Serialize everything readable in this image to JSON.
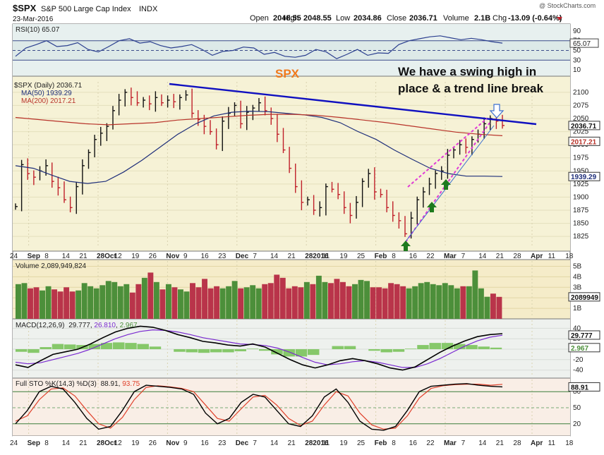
{
  "header": {
    "symbol": "$SPX",
    "name": "S&P 500 Large Cap Index",
    "exchange": "INDX",
    "date": "23-Mar-2016",
    "watermark": "@ StockCharts.com",
    "open_label": "Open",
    "open": "2048.55",
    "high_label": "High",
    "high": "2048.55",
    "low_label": "Low",
    "low": "2034.86",
    "close_label": "Close",
    "close": "2036.71",
    "volume_label": "Volume",
    "volume": "2.1B",
    "chg_label": "Chg",
    "chg": "-13.09 (-0.64%)"
  },
  "annotations": {
    "spx": "SPX",
    "comment_line1": "We have a swing high in",
    "comment_line2": "place & a trend line break"
  },
  "panels": {
    "rsi": {
      "label": "RSI(10) 65.07",
      "value": "65.07",
      "ticks": [
        "90",
        "70",
        "50",
        "30",
        "10"
      ]
    },
    "price": {
      "label": "$SPX (Daily) 2036.71",
      "ma50_label": "MA(50) 1939.29",
      "ma200_label": "MA(200) 2017.21",
      "close_tag": "2036.71",
      "ma200_tag": "2017.21",
      "ma50_tag": "1939.29",
      "ticks": [
        "2100",
        "2075",
        "2050",
        "2025",
        "2000",
        "1975",
        "1950",
        "1925",
        "1900",
        "1875",
        "1850",
        "1825"
      ]
    },
    "volume": {
      "label": "Volume 2,089,949,824",
      "tag": "2089949",
      "ticks": [
        "5B",
        "4B",
        "3B",
        "2B",
        "1B"
      ]
    },
    "macd": {
      "label_prefix": "MACD(12,26,9)",
      "v1": "29.777",
      "v2": "26.810",
      "v3": "2.967",
      "tag1": "29.777",
      "tag2": "2.967",
      "ticks": [
        "40",
        "20",
        "0",
        "-20",
        "-40"
      ]
    },
    "sto": {
      "label_prefix": "Full STO %K(14,3) %D(3)",
      "k": "88.91",
      "d": "93.75",
      "tag": "88.91",
      "ticks": [
        "80",
        "50",
        "20"
      ]
    }
  },
  "x_axis": {
    "labels": [
      "24",
      "Sep",
      "8",
      "14",
      "21",
      "28Oct",
      "12",
      "19",
      "26",
      "Nov",
      "9",
      "16",
      "23",
      "Dec",
      "7",
      "14",
      "21",
      "282016",
      "11",
      "19",
      "25",
      "Feb",
      "8",
      "16",
      "22",
      "Mar",
      "7",
      "14",
      "21",
      "28",
      "Apr",
      "11",
      "18"
    ],
    "bold": [
      false,
      true,
      false,
      false,
      false,
      true,
      false,
      false,
      false,
      true,
      false,
      false,
      false,
      true,
      false,
      false,
      false,
      true,
      false,
      false,
      false,
      true,
      false,
      false,
      false,
      true,
      false,
      false,
      false,
      false,
      true,
      false,
      false
    ]
  },
  "colors": {
    "rsi_line": "#2b3f8f",
    "ma50": "#1f2f7a",
    "ma200": "#b8332a",
    "trend_line": "#1010c0",
    "wedge": "#e03ad6",
    "spx_text": "#f07a1c",
    "arrow_green": "#1e7a1e",
    "vol_up": "#4c8f3a",
    "vol_down": "#b9344a",
    "macd_line": "#000000",
    "signal_line": "#7a2ad0",
    "hist": "#86c86a",
    "sto_k": "#000000",
    "sto_d": "#e0402a",
    "price_bg": "#f7f3d8"
  },
  "chart_data": [
    {
      "type": "line",
      "title": "RSI(10) 65.07",
      "ylim": [
        0,
        100
      ],
      "series": [
        {
          "name": "RSI(10)",
          "values": [
            38,
            55,
            62,
            70,
            58,
            60,
            66,
            52,
            47,
            58,
            70,
            74,
            65,
            68,
            60,
            55,
            58,
            62,
            52,
            40,
            48,
            50,
            57,
            55,
            42,
            46,
            38,
            36,
            40,
            52,
            47,
            33,
            42,
            52,
            40,
            45,
            44,
            62,
            70,
            74,
            78,
            80,
            76,
            72,
            75,
            72,
            68,
            65.07
          ]
        }
      ]
    },
    {
      "type": "line",
      "title": "$SPX (Daily) 2036.71",
      "ylim": [
        1805,
        2120
      ],
      "series": [
        {
          "name": "$SPX",
          "values": [
            1882,
            1962,
            1945,
            1938,
            1950,
            1960,
            1930,
            1918,
            1895,
            1880,
            1920,
            1960,
            1985,
            2010,
            2022,
            2035,
            2065,
            2085,
            2100,
            2090,
            2080,
            2085,
            2078,
            2090,
            2080,
            2085,
            2082,
            2090,
            2095,
            2060,
            2048,
            2035,
            2025,
            2000,
            2045,
            2060,
            2075,
            2040,
            2062,
            2070,
            2080,
            2065,
            2050,
            2020,
            1990,
            1955,
            1920,
            1890,
            1895,
            1875,
            1880,
            1920,
            1915,
            1905,
            1880,
            1865,
            1890,
            1930,
            1945,
            1910,
            1905,
            1880,
            1865,
            1855,
            1830,
            1860,
            1895,
            1910,
            1925,
            1945,
            1950,
            1980,
            1990,
            2000,
            1995,
            2010,
            2020,
            2040,
            2050,
            2045,
            2036.71
          ]
        },
        {
          "name": "MA(50)",
          "values": [
            1960,
            1955,
            1942,
            1930,
            1926,
            1930,
            1948,
            1970,
            1995,
            2020,
            2040,
            2055,
            2062,
            2064,
            2063,
            2060,
            2057,
            2052,
            2042,
            2025,
            2010,
            1990,
            1972,
            1955,
            1945,
            1940,
            1940,
            1939.29
          ]
        },
        {
          "name": "MA(200)",
          "values": [
            2052,
            2048,
            2044,
            2040,
            2038,
            2040,
            2042,
            2047,
            2050,
            2053,
            2056,
            2058,
            2058,
            2056,
            2052,
            2047,
            2042,
            2036,
            2030,
            2024,
            2020,
            2017.21
          ]
        }
      ],
      "annotations": [
        "SPX",
        "We have a swing high in place & a trend line break"
      ]
    },
    {
      "type": "bar",
      "title": "Volume 2,089,949,824",
      "ylim": [
        0,
        5500000000
      ],
      "series": [
        {
          "name": "Volume",
          "values": [
            3300000000.0,
            3400000000.0,
            2900000000.0,
            3000000000.0,
            2700000000.0,
            3100000000.0,
            2800000000.0,
            2600000000.0,
            3000000000.0,
            2600000000.0,
            2700000000.0,
            3400000000.0,
            3100000000.0,
            2900000000.0,
            3200000000.0,
            3600000000.0,
            3500000000.0,
            3100000000.0,
            3300000000.0,
            2500000000.0,
            3300000000.0,
            3900000000.0,
            4400000000.0,
            3500000000.0,
            2800000000.0,
            3300000000.0,
            3000000000.0,
            2800000000.0,
            2600000000.0,
            3400000000.0,
            3000000000.0,
            3800000000.0,
            2900000000.0,
            3100000000.0,
            2900000000.0,
            3100000000.0,
            3600000000.0,
            2900000000.0,
            3000000000.0,
            3200000000.0,
            2900000000.0,
            3300000000.0,
            3400000000.0,
            4200000000.0,
            3900000000.0,
            2900000000.0,
            3100000000.0,
            3000000000.0,
            3500000000.0,
            3300000000.0,
            4100000000.0,
            3500000000.0,
            3400000000.0,
            3800000000.0,
            3500000000.0,
            3100000000.0,
            3300000000.0,
            3700000000.0,
            3600000000.0,
            3000000000.0,
            3000000000.0,
            2900000000.0,
            3400000000.0,
            3300000000.0,
            3100000000.0,
            2900000000.0,
            3100000000.0,
            3400000000.0,
            3500000000.0,
            3300000000.0,
            3200000000.0,
            3400000000.0,
            3200000000.0,
            2900000000.0,
            3100000000.0,
            3100000000.0,
            4600000000.0,
            2900000000.0,
            2100000000.0,
            2400000000.0,
            2090000000.0
          ]
        }
      ]
    },
    {
      "type": "line",
      "title": "MACD(12,26,9) 29.777, 26.810, 2.967",
      "ylim": [
        -50,
        50
      ],
      "series": [
        {
          "name": "MACD",
          "values": [
            -30,
            -35,
            -22,
            -10,
            -5,
            0,
            10,
            22,
            33,
            40,
            44,
            42,
            36,
            28,
            22,
            15,
            12,
            8,
            6,
            10,
            4,
            -8,
            -20,
            -30,
            -36,
            -30,
            -22,
            -18,
            -22,
            -28,
            -36,
            -40,
            -34,
            -20,
            -6,
            6,
            16,
            24,
            28,
            29.777
          ]
        },
        {
          "name": "Signal",
          "values": [
            -25,
            -28,
            -26,
            -20,
            -14,
            -8,
            0,
            10,
            20,
            28,
            34,
            37,
            36,
            33,
            28,
            22,
            18,
            14,
            10,
            9,
            7,
            2,
            -6,
            -16,
            -25,
            -30,
            -28,
            -24,
            -22,
            -25,
            -30,
            -35,
            -35,
            -28,
            -18,
            -6,
            6,
            16,
            23,
            26.81
          ]
        },
        {
          "name": "Histogram",
          "values": [
            -5,
            -7,
            4,
            10,
            9,
            8,
            10,
            12,
            13,
            12,
            10,
            5,
            0,
            -5,
            -6,
            -7,
            -6,
            -6,
            -4,
            1,
            -3,
            -10,
            -14,
            -14,
            -11,
            0,
            6,
            6,
            0,
            -3,
            -6,
            -5,
            1,
            8,
            12,
            12,
            10,
            8,
            5,
            2.967
          ]
        }
      ]
    },
    {
      "type": "line",
      "title": "Full STO %K(14,3) %D(3) 88.91, 93.75",
      "ylim": [
        0,
        100
      ],
      "series": [
        {
          "name": "%K",
          "values": [
            20,
            45,
            80,
            90,
            85,
            60,
            30,
            10,
            15,
            45,
            80,
            92,
            90,
            88,
            85,
            75,
            40,
            20,
            30,
            60,
            75,
            70,
            45,
            20,
            15,
            35,
            70,
            85,
            60,
            25,
            10,
            8,
            15,
            45,
            80,
            90,
            92,
            94,
            95,
            92,
            90,
            88.91
          ]
        },
        {
          "name": "%D",
          "values": [
            25,
            35,
            65,
            85,
            87,
            72,
            45,
            20,
            12,
            32,
            65,
            88,
            91,
            89,
            86,
            80,
            55,
            30,
            25,
            48,
            70,
            73,
            55,
            30,
            17,
            25,
            55,
            80,
            72,
            40,
            18,
            10,
            12,
            35,
            68,
            86,
            91,
            93,
            94,
            94,
            92,
            93.75
          ]
        }
      ]
    }
  ]
}
